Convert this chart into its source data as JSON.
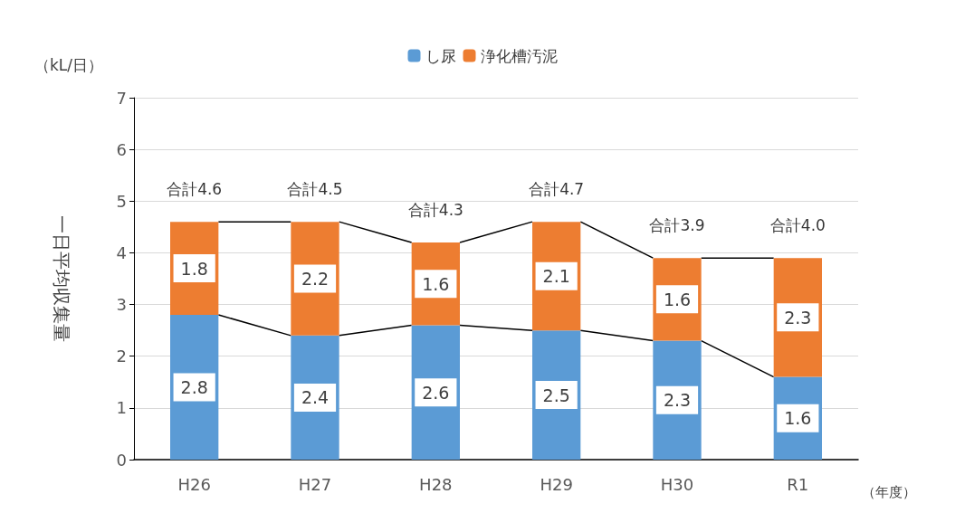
{
  "chart_data": {
    "type": "bar",
    "stacked": true,
    "ylabel": "一日平均収集量",
    "xlabel": "（年度）",
    "annotations": [
      "（kL/日）"
    ],
    "categories": [
      "H26",
      "H27",
      "H28",
      "H29",
      "H30",
      "R1"
    ],
    "series": [
      {
        "name": "し尿",
        "color": "#5b9bd5",
        "values": [
          2.8,
          2.4,
          2.6,
          2.5,
          2.3,
          1.6
        ]
      },
      {
        "name": "浄化槽汚泥",
        "color": "#ed7d31",
        "values": [
          1.8,
          2.2,
          1.6,
          2.1,
          1.6,
          2.3
        ]
      }
    ],
    "totals": [
      "合計4.6",
      "合計4.5",
      "合計4.3",
      "合計4.7",
      "合計3.9",
      "合計4.0"
    ],
    "data_labels": true,
    "ylim": [
      0,
      7
    ],
    "yticks": [
      0,
      1,
      2,
      3,
      4,
      5,
      6,
      7
    ],
    "grid": "y",
    "legend": "top"
  }
}
